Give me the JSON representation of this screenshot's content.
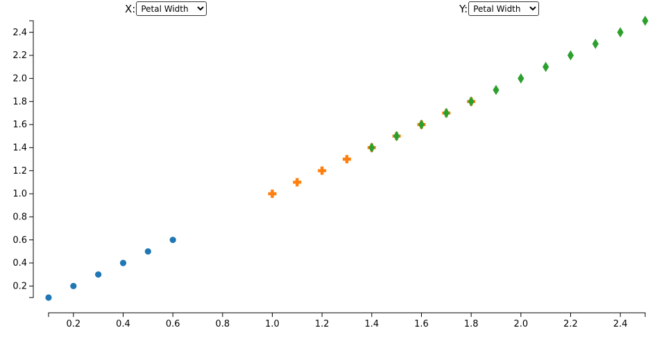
{
  "controls": {
    "x": {
      "label": "X:",
      "selected": "Petal Width",
      "options": [
        "Petal Width"
      ]
    },
    "y": {
      "label": "Y:",
      "selected": "Petal Width",
      "options": [
        "Petal Width"
      ]
    }
  },
  "chart_data": {
    "type": "scatter",
    "title": "",
    "xlabel": "",
    "ylabel": "",
    "xlim": [
      0.1,
      2.5
    ],
    "ylim": [
      0.1,
      2.5
    ],
    "x_ticks": [
      0.2,
      0.4,
      0.6,
      0.8,
      1.0,
      1.2,
      1.4,
      1.6,
      1.8,
      2.0,
      2.2,
      2.4
    ],
    "y_ticks": [
      0.2,
      0.4,
      0.6,
      0.8,
      1.0,
      1.2,
      1.4,
      1.6,
      1.8,
      2.0,
      2.2,
      2.4
    ],
    "grid": false,
    "series": [
      {
        "marker": "circle",
        "color": "#1f77b4",
        "points": [
          [
            0.1,
            0.1
          ],
          [
            0.2,
            0.2
          ],
          [
            0.3,
            0.3
          ],
          [
            0.4,
            0.4
          ],
          [
            0.5,
            0.5
          ],
          [
            0.6,
            0.6
          ]
        ]
      },
      {
        "marker": "cross",
        "color": "#ff7f0e",
        "points": [
          [
            1.0,
            1.0
          ],
          [
            1.1,
            1.1
          ],
          [
            1.2,
            1.2
          ],
          [
            1.3,
            1.3
          ],
          [
            1.4,
            1.4
          ],
          [
            1.5,
            1.5
          ],
          [
            1.6,
            1.6
          ],
          [
            1.7,
            1.7
          ],
          [
            1.8,
            1.8
          ]
        ]
      },
      {
        "marker": "diamond",
        "color": "#2ca02c",
        "points": [
          [
            1.4,
            1.4
          ],
          [
            1.5,
            1.5
          ],
          [
            1.6,
            1.6
          ],
          [
            1.7,
            1.7
          ],
          [
            1.8,
            1.8
          ],
          [
            1.9,
            1.9
          ],
          [
            2.0,
            2.0
          ],
          [
            2.1,
            2.1
          ],
          [
            2.2,
            2.2
          ],
          [
            2.3,
            2.3
          ],
          [
            2.4,
            2.4
          ],
          [
            2.5,
            2.5
          ]
        ]
      }
    ]
  }
}
